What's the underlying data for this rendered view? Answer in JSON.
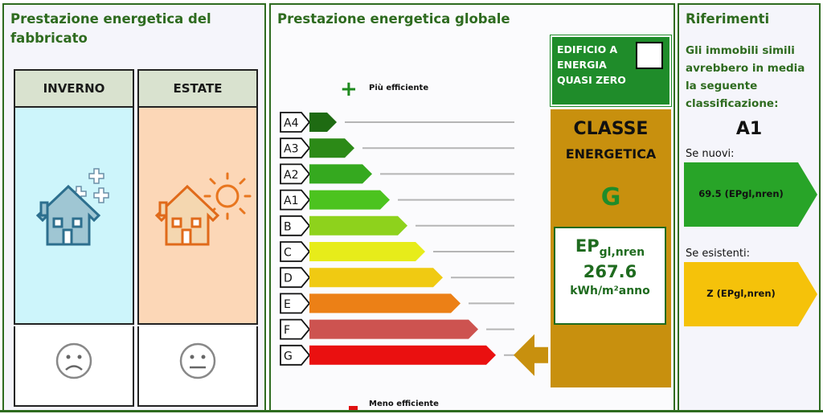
{
  "building": {
    "title": "Prestazione energetica del fabbricato",
    "winter_label": "INVERNO",
    "summer_label": "ESTATE",
    "winter_rating": "sad-face-icon",
    "summer_rating": "neutral-face-icon"
  },
  "global": {
    "title": "Prestazione energetica globale",
    "more_efficient": "Più efficiente",
    "less_efficient": "Meno efficiente",
    "classes": [
      "A4",
      "A3",
      "A2",
      "A1",
      "B",
      "C",
      "D",
      "E",
      "F",
      "G"
    ],
    "class_colors": [
      "#1e6b12",
      "#2c8a17",
      "#35a91f",
      "#4cc31f",
      "#8ed21c",
      "#e7ec1a",
      "#f0ca12",
      "#ec8016",
      "#cd5350",
      "#ea1010"
    ],
    "selected_class": "G",
    "nzeb_label": "EDIFICIO A ENERGIA QUASI ZERO",
    "nzeb_checked": false,
    "classe_line1": "CLASSE",
    "classe_line2": "ENERGETICA",
    "classe_value": "G",
    "ep_main": "EP",
    "ep_sub": "gl,nren",
    "ep_value": "267.6",
    "ep_unit": "kWh/m²anno"
  },
  "references": {
    "title": "Riferimenti",
    "description": "Gli immobili simili avrebbero in media la seguente classificazione:",
    "reference_class": "A1",
    "new_label": "Se nuovi:",
    "new_value": "69.5 (EPgl,nren)",
    "new_color": "#28a428",
    "existing_label": "Se esistenti:",
    "existing_value": "Z (EPgl,nren)",
    "existing_color": "#f5c20a"
  }
}
